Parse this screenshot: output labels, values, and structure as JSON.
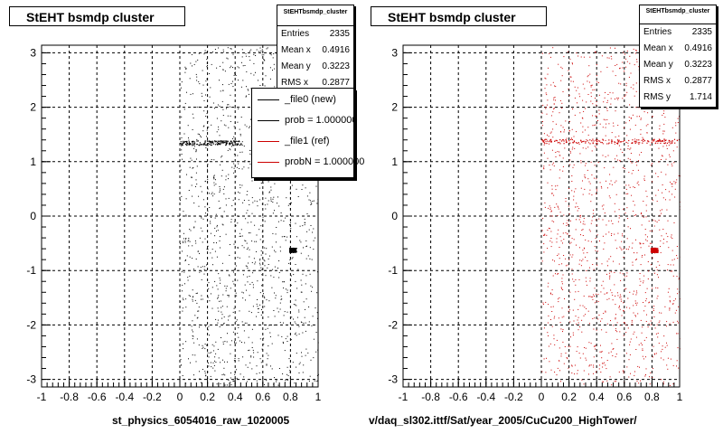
{
  "chart_data": [
    {
      "type": "scatter",
      "title": "StEHT bsmdp cluster",
      "xlabel": "st_physics_6054016_raw_1020005",
      "ylabel": "",
      "xlim": [
        -1,
        1
      ],
      "ylim": [
        -3.14,
        3.14
      ],
      "x_ticks": [
        "-1",
        "-0.8",
        "-0.6",
        "-0.4",
        "-0.2",
        "0",
        "0.2",
        "0.4",
        "0.6",
        "0.8",
        "1"
      ],
      "y_ticks": [
        "-3",
        "-2",
        "-1",
        "0",
        "1",
        "2",
        "3"
      ],
      "grid": true,
      "marker_color": "#000000",
      "data_x_range": [
        0,
        1
      ],
      "bands": [
        {
          "x": [
            0,
            0.45
          ],
          "y": 1.35
        },
        {
          "x": [
            0.79,
            0.84
          ],
          "y": -0.62
        }
      ],
      "stats": {
        "name": "StEHTbsmdp_cluster",
        "rows": [
          {
            "label": "Entries",
            "value": "2335"
          },
          {
            "label": "Mean x",
            "value": "0.4916"
          },
          {
            "label": "Mean y",
            "value": "0.3223"
          },
          {
            "label": "RMS x",
            "value": "0.2877"
          }
        ]
      },
      "legend": [
        {
          "label": "_file0 (new)",
          "color": "#000000"
        },
        {
          "label": "prob = 1.000000",
          "color": "#000000"
        },
        {
          "label": "_file1 (ref)",
          "color": "#cc0000"
        },
        {
          "label": "probN = 1.000000",
          "color": "#cc0000"
        }
      ]
    },
    {
      "type": "scatter",
      "title": "StEHT bsmdp cluster",
      "xlabel": "v/daq_sl302.ittf/Sat/year_2005/CuCu200_HighTower/",
      "ylabel": "",
      "xlim": [
        -1,
        1
      ],
      "ylim": [
        -3.14,
        3.14
      ],
      "x_ticks": [
        "-1",
        "-0.8",
        "-0.6",
        "-0.4",
        "-0.2",
        "0",
        "0.2",
        "0.4",
        "0.6",
        "0.8",
        "1"
      ],
      "y_ticks": [
        "-3",
        "-2",
        "-1",
        "0",
        "1",
        "2",
        "3"
      ],
      "grid": true,
      "marker_color": "#cc0000",
      "data_x_range": [
        0,
        1
      ],
      "bands": [
        {
          "x": [
            0,
            1
          ],
          "y": 1.38
        },
        {
          "x": [
            0.79,
            0.84
          ],
          "y": -0.62
        }
      ],
      "stats": {
        "name": "StEHTbsmdp_cluster",
        "rows": [
          {
            "label": "Entries",
            "value": "2335"
          },
          {
            "label": "Mean x",
            "value": "0.4916"
          },
          {
            "label": "Mean y",
            "value": "0.3223"
          },
          {
            "label": "RMS x",
            "value": "0.2877"
          },
          {
            "label": "RMS y",
            "value": "1.714"
          }
        ]
      }
    }
  ]
}
